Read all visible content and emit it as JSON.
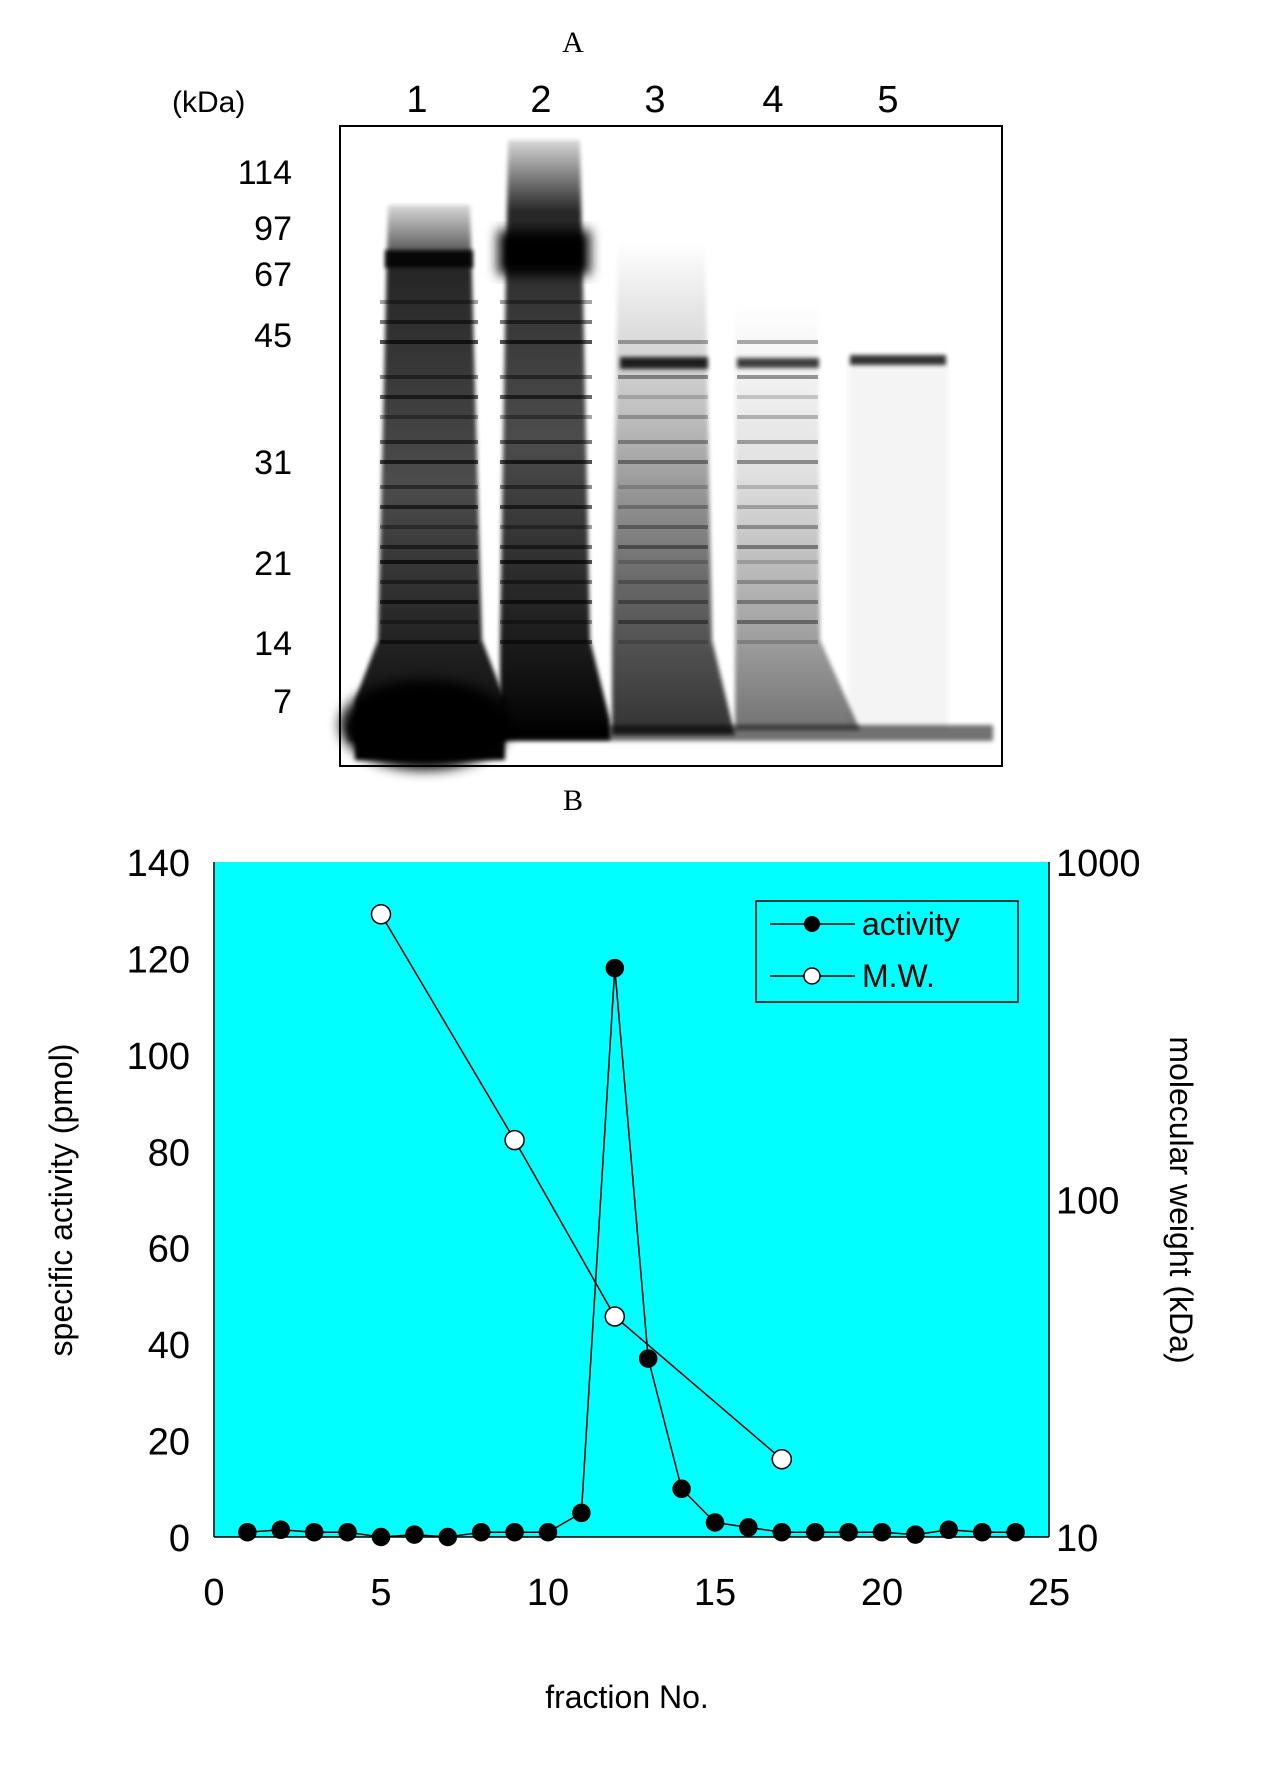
{
  "panel_labels": {
    "a": "A",
    "b": "B"
  },
  "gel": {
    "unit_label": "(kDa)",
    "lane_labels": [
      "1",
      "2",
      "3",
      "4",
      "5"
    ],
    "markers": [
      "114",
      "97",
      "67",
      "45",
      "31",
      "21",
      "14",
      "7"
    ]
  },
  "chart_data": {
    "type": "line",
    "xlabel": "fraction No.",
    "ylabel": "specific activity (pmol)",
    "y2label": "molecular weight (kDa)",
    "xlim": [
      0,
      25
    ],
    "ylim": [
      0,
      140
    ],
    "y2lim": [
      10,
      1000
    ],
    "y2scale": "log",
    "x_ticks": [
      0,
      5,
      10,
      15,
      20,
      25
    ],
    "y_ticks": [
      0,
      20,
      40,
      60,
      80,
      100,
      120,
      140
    ],
    "y2_ticks": [
      10,
      100,
      1000
    ],
    "grid": false,
    "background": "#00ffff",
    "legend": "top-right",
    "series": [
      {
        "name": "activity",
        "axis": "left",
        "marker": "filled-circle",
        "x": [
          1,
          2,
          3,
          4,
          5,
          6,
          7,
          8,
          9,
          10,
          11,
          12,
          13,
          14,
          15,
          16,
          17,
          18,
          19,
          20,
          21,
          22,
          23,
          24
        ],
        "y": [
          1,
          1.5,
          1,
          1,
          0,
          0.5,
          0,
          1,
          1,
          1,
          5,
          118,
          37,
          10,
          3,
          2,
          1,
          1,
          1,
          1,
          0.5,
          1.5,
          1,
          1
        ]
      },
      {
        "name": "M.W.",
        "axis": "right",
        "marker": "open-circle",
        "x": [
          5,
          9,
          12,
          17
        ],
        "y": [
          700,
          150,
          45,
          17
        ]
      }
    ]
  }
}
